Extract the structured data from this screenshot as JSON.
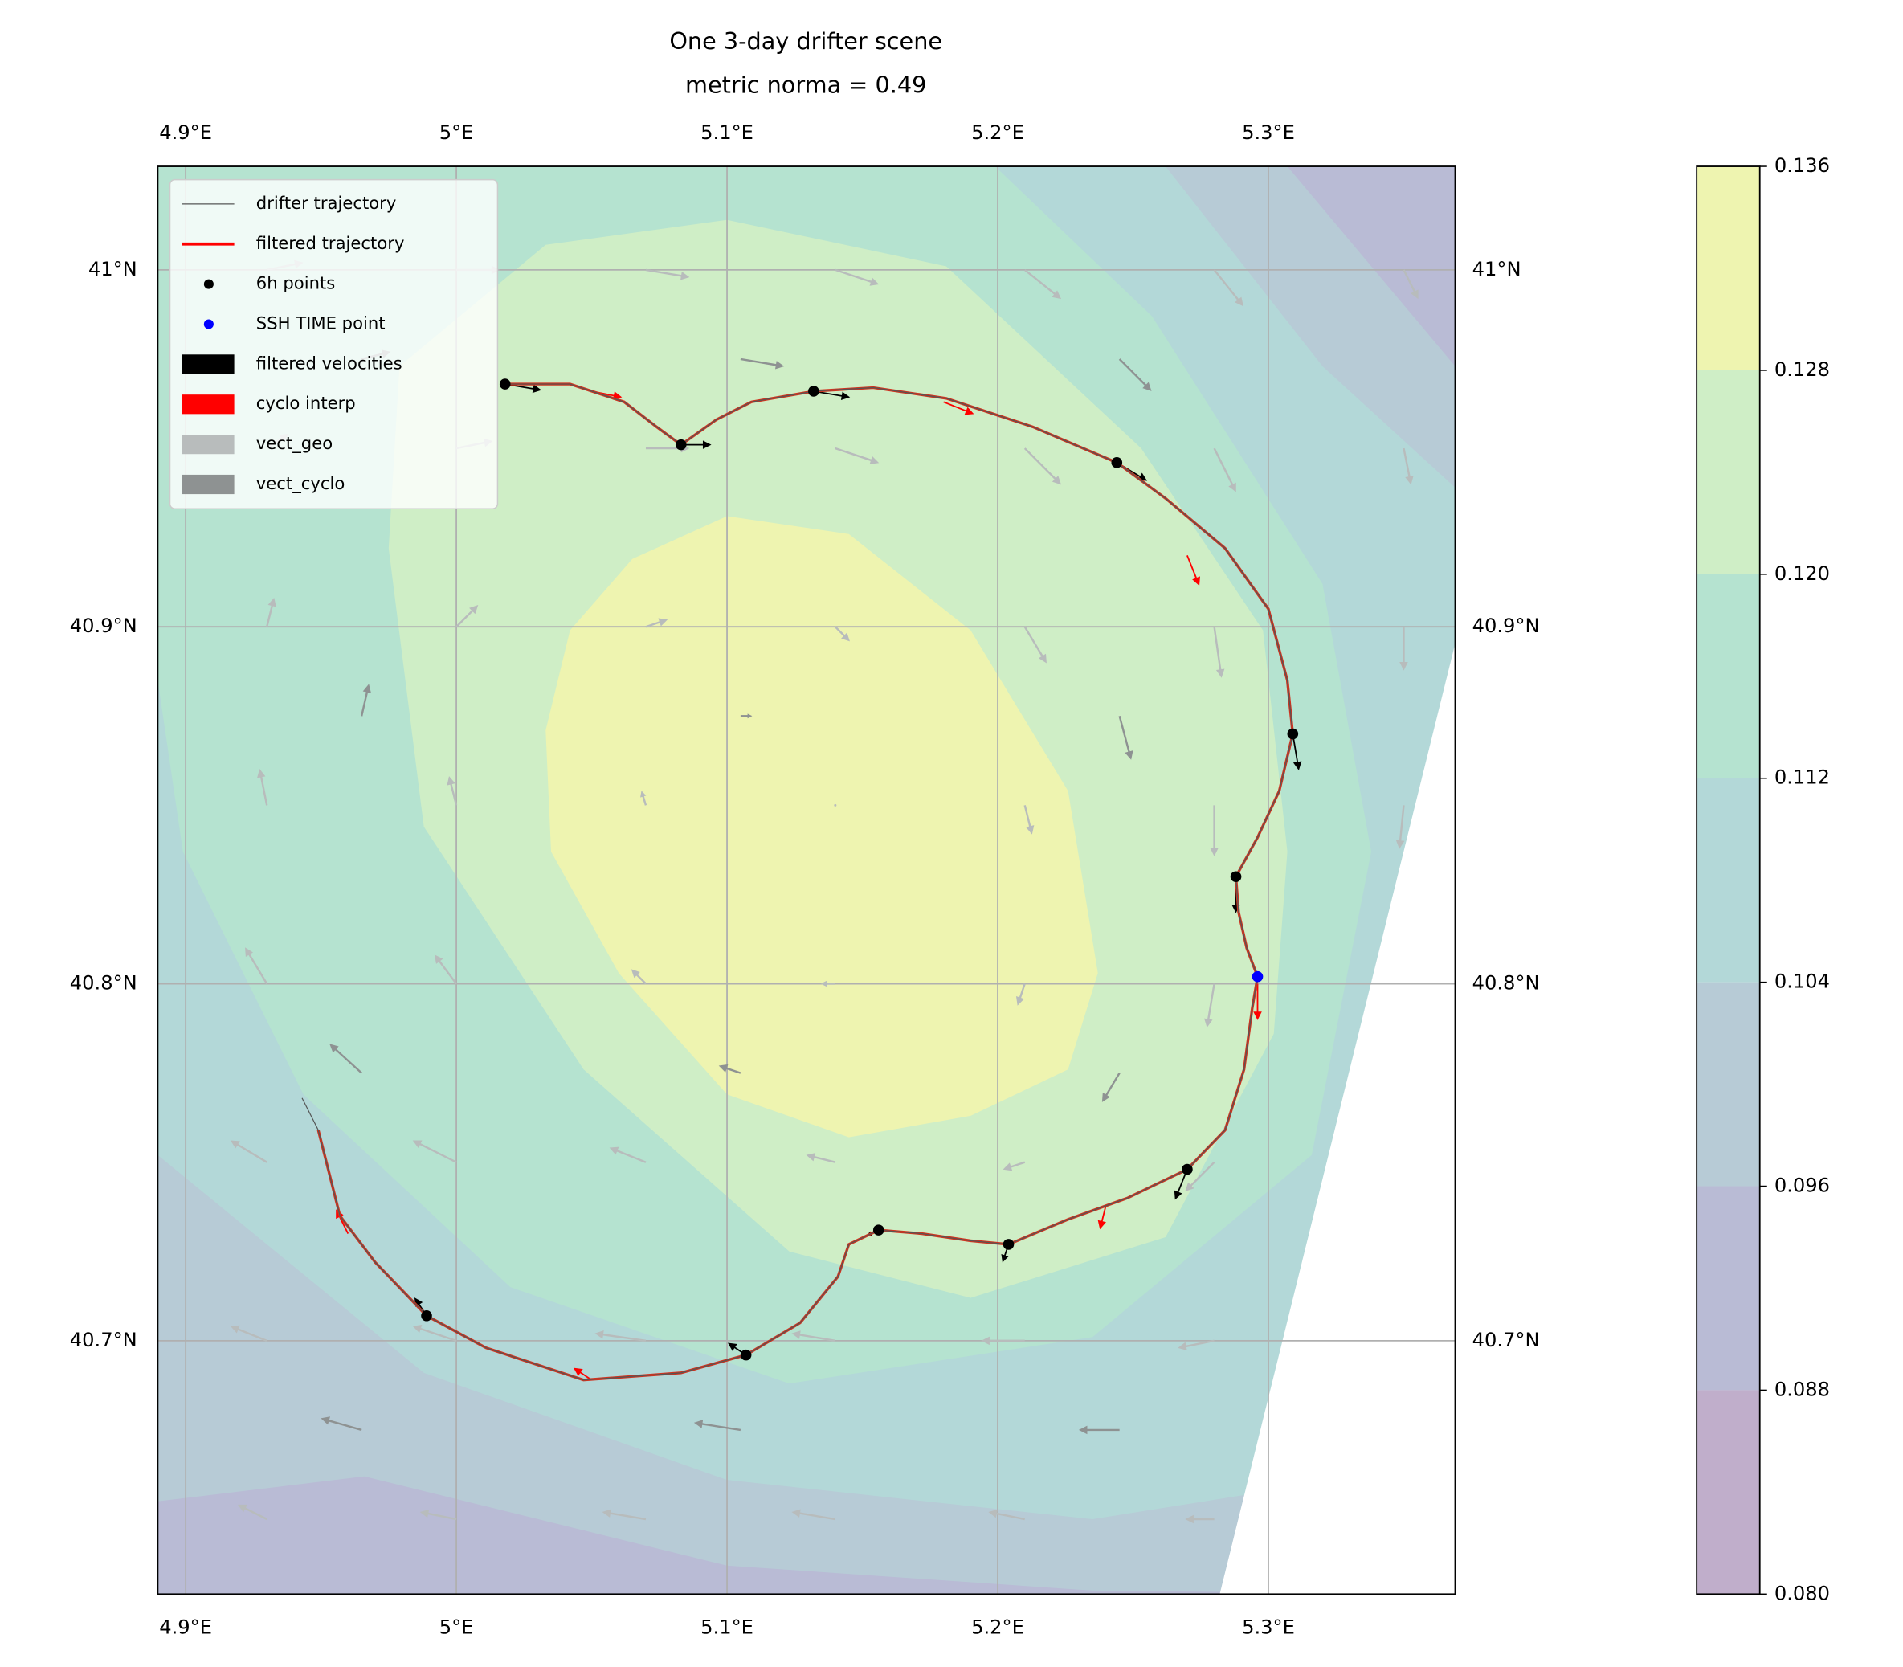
{
  "chart_data": {
    "type": "map",
    "title": "One 3-day drifter scene",
    "subtitle": "metric norma = 0.49",
    "xlim": [
      4.8897,
      5.369
    ],
    "ylim": [
      40.629,
      41.029
    ],
    "xticks": [
      {
        "value": 4.9,
        "label": "4.9°E"
      },
      {
        "value": 5.0,
        "label": "5°E"
      },
      {
        "value": 5.1,
        "label": "5.1°E"
      },
      {
        "value": 5.2,
        "label": "5.2°E"
      },
      {
        "value": 5.3,
        "label": "5.3°E"
      }
    ],
    "yticks": [
      {
        "value": 40.7,
        "label": "40.7°N"
      },
      {
        "value": 40.8,
        "label": "40.8°N"
      },
      {
        "value": 40.9,
        "label": "40.9°N"
      },
      {
        "value": 41.0,
        "label": "41°N"
      }
    ],
    "grid": true,
    "legend": "upper left",
    "colorbar": {
      "levels": [
        0.08,
        0.088,
        0.096,
        0.104,
        0.112,
        0.12,
        0.128,
        0.136
      ],
      "ticks": [
        {
          "value": 0.08,
          "label": "0.080"
        },
        0.088,
        0.096,
        0.104,
        0.112,
        {
          "value": 0.12,
          "label": "0.120"
        },
        0.128,
        0.136
      ],
      "colors": [
        "#c0aecb",
        "#b9bbd5",
        "#b7cbd6",
        "#b3d8d8",
        "#b5e3d0",
        "#cfeec6",
        "#eef4b0"
      ]
    },
    "contours": [
      {
        "level": 0.088,
        "polygon": [
          [
            4.8897,
            41.029
          ],
          [
            5.369,
            41.029
          ],
          [
            5.369,
            40.629
          ],
          [
            4.8897,
            40.629
          ]
        ]
      },
      {
        "level": 0.096,
        "polygon": [
          [
            4.8897,
            41.029
          ],
          [
            5.307,
            41.029
          ],
          [
            5.369,
            40.973
          ],
          [
            5.369,
            40.629
          ],
          [
            5.235,
            40.63
          ],
          [
            5.1,
            40.637
          ],
          [
            4.966,
            40.662
          ],
          [
            4.8897,
            40.655
          ]
        ]
      },
      {
        "level": 0.104,
        "polygon": [
          [
            4.8897,
            41.029
          ],
          [
            5.262,
            41.029
          ],
          [
            5.32,
            40.973
          ],
          [
            5.369,
            40.939
          ],
          [
            5.369,
            40.629
          ],
          [
            5.293,
            40.657
          ],
          [
            5.235,
            40.65
          ],
          [
            5.1,
            40.661
          ],
          [
            4.988,
            40.691
          ],
          [
            4.8897,
            40.752
          ]
        ]
      },
      {
        "level": 0.112,
        "polygon": [
          [
            4.8897,
            41.029
          ],
          [
            5.199,
            41.029
          ],
          [
            5.257,
            40.987
          ],
          [
            5.32,
            40.912
          ],
          [
            5.338,
            40.837
          ],
          [
            5.316,
            40.752
          ],
          [
            5.235,
            40.701
          ],
          [
            5.123,
            40.688
          ],
          [
            5.02,
            40.715
          ],
          [
            4.9435,
            40.769
          ],
          [
            4.899,
            40.837
          ],
          [
            4.8897,
            40.885
          ]
        ]
      },
      {
        "level": 0.12,
        "polygon": [
          [
            4.979,
            40.973
          ],
          [
            5.033,
            41.007
          ],
          [
            5.1,
            41.014
          ],
          [
            5.181,
            41.001
          ],
          [
            5.253,
            40.95
          ],
          [
            5.298,
            40.899
          ],
          [
            5.307,
            40.837
          ],
          [
            5.302,
            40.786
          ],
          [
            5.262,
            40.729
          ],
          [
            5.19,
            40.712
          ],
          [
            5.123,
            40.725
          ],
          [
            5.047,
            40.776
          ],
          [
            4.988,
            40.844
          ],
          [
            4.975,
            40.922
          ]
        ]
      },
      {
        "level": 0.128,
        "polygon": [
          [
            5.033,
            40.871
          ],
          [
            5.042,
            40.899
          ],
          [
            5.065,
            40.919
          ],
          [
            5.1,
            40.931
          ],
          [
            5.145,
            40.926
          ],
          [
            5.19,
            40.899
          ],
          [
            5.226,
            40.854
          ],
          [
            5.237,
            40.803
          ],
          [
            5.226,
            40.776
          ],
          [
            5.19,
            40.763
          ],
          [
            5.145,
            40.757
          ],
          [
            5.1,
            40.769
          ],
          [
            5.06,
            40.803
          ],
          [
            5.035,
            40.837
          ]
        ]
      }
    ],
    "series": [
      {
        "name": "drifter trajectory",
        "type": "line",
        "color": "#555555",
        "lon": [
          4.943,
          4.949,
          4.957,
          4.97,
          4.989,
          5.011,
          5.047,
          5.083,
          5.107,
          5.127,
          5.141,
          5.145,
          5.156,
          5.172,
          5.19,
          5.204,
          5.226,
          5.248,
          5.27,
          5.284,
          5.291,
          5.294,
          5.296,
          5.292,
          5.289,
          5.288,
          5.296,
          5.304,
          5.309,
          5.307,
          5.3,
          5.284,
          5.262,
          5.244,
          5.213,
          5.181,
          5.154,
          5.132,
          5.109,
          5.096,
          5.083,
          5.074,
          5.062,
          5.042,
          5.018
        ],
        "lat": [
          40.768,
          40.759,
          40.735,
          40.722,
          40.707,
          40.698,
          40.689,
          40.691,
          40.696,
          40.705,
          40.718,
          40.727,
          40.731,
          40.73,
          40.728,
          40.727,
          40.734,
          40.74,
          40.748,
          40.759,
          40.776,
          40.793,
          40.802,
          40.81,
          40.82,
          40.83,
          40.841,
          40.854,
          40.87,
          40.885,
          40.905,
          40.922,
          40.936,
          40.946,
          40.956,
          40.964,
          40.967,
          40.966,
          40.963,
          40.958,
          40.951,
          40.956,
          40.963,
          40.968,
          40.968
        ]
      },
      {
        "name": "filtered trajectory",
        "type": "line",
        "color": "#d0331f",
        "lon": [
          4.949,
          4.957,
          4.97,
          4.989,
          5.011,
          5.047,
          5.083,
          5.107,
          5.127,
          5.141,
          5.145,
          5.156,
          5.172,
          5.19,
          5.204,
          5.226,
          5.248,
          5.27,
          5.284,
          5.291,
          5.294,
          5.296,
          5.292,
          5.289,
          5.288,
          5.296,
          5.304,
          5.309,
          5.307,
          5.3,
          5.284,
          5.262,
          5.244,
          5.213,
          5.181,
          5.154,
          5.132,
          5.109,
          5.096,
          5.083,
          5.074,
          5.062,
          5.042,
          5.018
        ],
        "lat": [
          40.759,
          40.735,
          40.722,
          40.707,
          40.698,
          40.689,
          40.691,
          40.696,
          40.705,
          40.718,
          40.727,
          40.731,
          40.73,
          40.728,
          40.727,
          40.734,
          40.74,
          40.748,
          40.759,
          40.776,
          40.793,
          40.802,
          40.81,
          40.82,
          40.83,
          40.841,
          40.854,
          40.87,
          40.885,
          40.905,
          40.922,
          40.936,
          40.946,
          40.956,
          40.964,
          40.967,
          40.966,
          40.963,
          40.958,
          40.951,
          40.956,
          40.963,
          40.968,
          40.968
        ]
      },
      {
        "name": "6h points",
        "type": "scatter",
        "color": "black",
        "lon": [
          5.018,
          5.083,
          5.132,
          5.244,
          5.309,
          5.288,
          5.27,
          5.204,
          5.156,
          5.107,
          4.989
        ],
        "lat": [
          40.968,
          40.951,
          40.966,
          40.946,
          40.87,
          40.83,
          40.748,
          40.727,
          40.731,
          40.696,
          40.707
        ]
      },
      {
        "name": "SSH TIME point",
        "type": "scatter",
        "color": "blue",
        "lon": [
          5.296
        ],
        "lat": [
          40.802
        ]
      },
      {
        "name": "filtered velocities",
        "type": "quiver",
        "color": "black",
        "vectors": [
          [
            5.018,
            40.968,
            0.3,
            -0.05
          ],
          [
            5.083,
            40.951,
            0.25,
            0
          ],
          [
            5.132,
            40.966,
            0.3,
            -0.05
          ],
          [
            5.244,
            40.946,
            0.25,
            -0.15
          ],
          [
            5.309,
            40.87,
            0.05,
            -0.3
          ],
          [
            5.288,
            40.83,
            0,
            -0.3
          ],
          [
            5.27,
            40.748,
            -0.1,
            -0.25
          ],
          [
            5.204,
            40.727,
            -0.05,
            -0.15
          ],
          [
            5.156,
            40.731,
            -0.1,
            -0.05
          ],
          [
            5.107,
            40.696,
            -0.15,
            0.1
          ],
          [
            4.989,
            40.707,
            -0.1,
            0.15
          ]
        ]
      },
      {
        "name": "cyclo interp",
        "type": "quiver",
        "color": "red",
        "vectors": [
          [
            5.05,
            40.966,
            0.25,
            -0.05
          ],
          [
            5.18,
            40.963,
            0.25,
            -0.1
          ],
          [
            5.27,
            40.92,
            0.1,
            -0.25
          ],
          [
            5.296,
            40.8,
            0,
            -0.3
          ],
          [
            5.24,
            40.738,
            -0.05,
            -0.2
          ],
          [
            5.05,
            40.689,
            -0.15,
            0.1
          ],
          [
            4.96,
            40.73,
            -0.1,
            0.2
          ]
        ]
      },
      {
        "name": "vect_geo",
        "type": "quiver",
        "color": "#b8bcbc",
        "vectors": [
          [
            4.93,
            41.0,
            0.25,
            0.05
          ],
          [
            5.0,
            41.0,
            0.3,
            0
          ],
          [
            5.07,
            41.0,
            0.3,
            -0.05
          ],
          [
            5.14,
            41.0,
            0.3,
            -0.1
          ],
          [
            5.21,
            41.0,
            0.25,
            -0.2
          ],
          [
            5.28,
            41.0,
            0.2,
            -0.25
          ],
          [
            5.35,
            41.0,
            0.1,
            -0.2
          ],
          [
            4.93,
            40.95,
            0.15,
            0.1
          ],
          [
            5.0,
            40.95,
            0.25,
            0.05
          ],
          [
            5.07,
            40.95,
            0.3,
            0
          ],
          [
            5.14,
            40.95,
            0.3,
            -0.1
          ],
          [
            5.21,
            40.95,
            0.25,
            -0.25
          ],
          [
            5.28,
            40.95,
            0.15,
            -0.3
          ],
          [
            5.35,
            40.95,
            0.05,
            -0.25
          ],
          [
            4.93,
            40.9,
            0.05,
            0.2
          ],
          [
            5.0,
            40.9,
            0.15,
            0.15
          ],
          [
            5.07,
            40.9,
            0.15,
            0.05
          ],
          [
            5.14,
            40.9,
            0.1,
            -0.1
          ],
          [
            5.21,
            40.9,
            0.15,
            -0.25
          ],
          [
            5.28,
            40.9,
            0.05,
            -0.35
          ],
          [
            5.35,
            40.9,
            0,
            -0.3
          ],
          [
            4.93,
            40.85,
            -0.05,
            0.25
          ],
          [
            5.0,
            40.85,
            -0.05,
            0.2
          ],
          [
            5.07,
            40.85,
            -0.03,
            0.1
          ],
          [
            5.14,
            40.85,
            0,
            0
          ],
          [
            5.21,
            40.85,
            0.05,
            -0.2
          ],
          [
            5.28,
            40.85,
            0,
            -0.35
          ],
          [
            5.35,
            40.85,
            -0.03,
            -0.3
          ],
          [
            4.93,
            40.8,
            -0.15,
            0.25
          ],
          [
            5.0,
            40.8,
            -0.15,
            0.2
          ],
          [
            5.07,
            40.8,
            -0.1,
            0.1
          ],
          [
            5.14,
            40.8,
            -0.1,
            0
          ],
          [
            5.21,
            40.8,
            -0.05,
            -0.15
          ],
          [
            5.28,
            40.8,
            -0.05,
            -0.3
          ],
          [
            4.93,
            40.75,
            -0.25,
            0.15
          ],
          [
            5.0,
            40.75,
            -0.3,
            0.15
          ],
          [
            5.07,
            40.75,
            -0.25,
            0.1
          ],
          [
            5.14,
            40.75,
            -0.2,
            0.05
          ],
          [
            5.21,
            40.75,
            -0.15,
            -0.05
          ],
          [
            5.28,
            40.75,
            -0.2,
            -0.2
          ],
          [
            4.93,
            40.7,
            -0.25,
            0.1
          ],
          [
            5.0,
            40.7,
            -0.3,
            0.1
          ],
          [
            5.07,
            40.7,
            -0.35,
            0.05
          ],
          [
            5.14,
            40.7,
            -0.3,
            0.05
          ],
          [
            5.21,
            40.7,
            -0.3,
            0
          ],
          [
            5.28,
            40.7,
            -0.25,
            -0.05
          ],
          [
            4.93,
            40.65,
            -0.2,
            0.1
          ],
          [
            5.0,
            40.65,
            -0.25,
            0.05
          ],
          [
            5.07,
            40.65,
            -0.3,
            0.05
          ],
          [
            5.14,
            40.65,
            -0.3,
            0.05
          ],
          [
            5.21,
            40.65,
            -0.25,
            0.05
          ],
          [
            5.28,
            40.65,
            -0.2,
            0
          ]
        ]
      },
      {
        "name": "vect_cyclo",
        "type": "quiver",
        "color": "#8e9292",
        "vectors": [
          [
            4.965,
            40.975,
            0.2,
            0.05
          ],
          [
            5.105,
            40.975,
            0.3,
            -0.05
          ],
          [
            5.245,
            40.975,
            0.22,
            -0.22
          ],
          [
            4.965,
            40.875,
            0.05,
            0.22
          ],
          [
            5.105,
            40.875,
            0.08,
            0
          ],
          [
            5.245,
            40.875,
            0.08,
            -0.3
          ],
          [
            4.965,
            40.775,
            -0.22,
            0.2
          ],
          [
            5.105,
            40.775,
            -0.15,
            0.05
          ],
          [
            5.245,
            40.775,
            -0.12,
            -0.2
          ],
          [
            4.965,
            40.675,
            -0.28,
            0.08
          ],
          [
            5.105,
            40.675,
            -0.32,
            0.05
          ],
          [
            5.245,
            40.675,
            -0.28,
            0
          ]
        ]
      }
    ]
  }
}
